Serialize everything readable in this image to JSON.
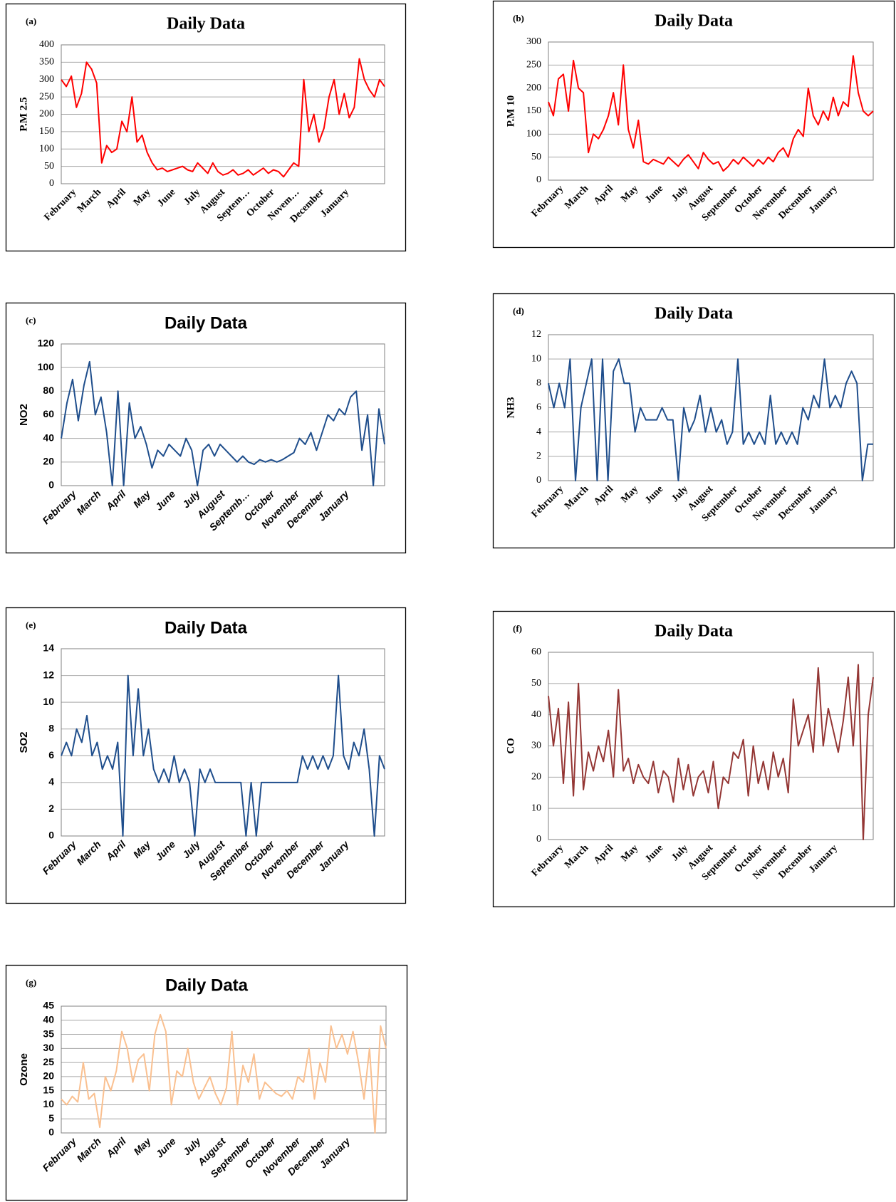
{
  "chart_data": [
    {
      "type": "line",
      "panel": "(a)",
      "title": "Daily Data",
      "y_label": "P.M 2.5",
      "color": "#ff0000",
      "grid": true,
      "ylim": [
        0,
        400
      ],
      "yticks": [
        0,
        50,
        100,
        150,
        200,
        250,
        300,
        350,
        400
      ],
      "months": [
        "February",
        "March",
        "April",
        "May",
        "June",
        "July",
        "August",
        "Septem…",
        "October",
        "Novem…",
        "December",
        "January"
      ],
      "values": [
        300,
        280,
        310,
        220,
        260,
        350,
        330,
        290,
        60,
        110,
        90,
        100,
        180,
        150,
        250,
        120,
        140,
        90,
        60,
        40,
        45,
        35,
        40,
        45,
        50,
        40,
        35,
        60,
        45,
        30,
        60,
        35,
        25,
        30,
        40,
        25,
        30,
        40,
        25,
        35,
        45,
        30,
        40,
        35,
        20,
        40,
        60,
        50,
        300,
        150,
        200,
        120,
        160,
        250,
        300,
        200,
        260,
        190,
        220,
        360,
        300,
        270,
        250,
        300,
        280
      ]
    },
    {
      "type": "line",
      "panel": "(b)",
      "title": "Daily Data",
      "y_label": "P.M 10",
      "color": "#ff0000",
      "grid": true,
      "ylim": [
        0,
        300
      ],
      "yticks": [
        0,
        50,
        100,
        150,
        200,
        250,
        300
      ],
      "months": [
        "February",
        "March",
        "April",
        "May",
        "June",
        "July",
        "August",
        "September",
        "October",
        "November",
        "December",
        "January"
      ],
      "values": [
        170,
        140,
        220,
        230,
        150,
        260,
        200,
        190,
        60,
        100,
        90,
        110,
        140,
        190,
        120,
        250,
        110,
        70,
        130,
        40,
        35,
        45,
        40,
        35,
        50,
        40,
        30,
        45,
        55,
        40,
        25,
        60,
        45,
        35,
        40,
        20,
        30,
        45,
        35,
        50,
        40,
        30,
        45,
        35,
        50,
        40,
        60,
        70,
        50,
        90,
        110,
        95,
        200,
        140,
        120,
        150,
        130,
        180,
        140,
        170,
        160,
        270,
        190,
        150,
        140,
        150
      ]
    },
    {
      "type": "line",
      "panel": "(c)",
      "title": "Daily Data",
      "y_label": "NO2",
      "color": "#1f4e8c",
      "grid": true,
      "ylim": [
        0,
        120
      ],
      "yticks": [
        0,
        20,
        40,
        60,
        80,
        100,
        120
      ],
      "months": [
        "February",
        "March",
        "April",
        "May",
        "June",
        "July",
        "August",
        "Septemb…",
        "October",
        "November",
        "December",
        "January"
      ],
      "values": [
        40,
        70,
        90,
        55,
        85,
        105,
        60,
        75,
        45,
        0,
        80,
        0,
        70,
        40,
        50,
        35,
        15,
        30,
        25,
        35,
        30,
        25,
        40,
        30,
        0,
        30,
        35,
        25,
        35,
        30,
        25,
        20,
        25,
        20,
        18,
        22,
        20,
        22,
        20,
        22,
        25,
        28,
        40,
        35,
        45,
        30,
        45,
        60,
        55,
        65,
        60,
        75,
        80,
        30,
        60,
        0,
        65,
        35
      ]
    },
    {
      "type": "line",
      "panel": "(d)",
      "title": "Daily Data",
      "y_label": "NH3",
      "color": "#1f4e8c",
      "grid": true,
      "ylim": [
        0,
        12
      ],
      "yticks": [
        0,
        2,
        4,
        6,
        8,
        10,
        12
      ],
      "months": [
        "February",
        "March",
        "April",
        "May",
        "June",
        "July",
        "August",
        "September",
        "October",
        "November",
        "December",
        "January"
      ],
      "values": [
        8,
        6,
        8,
        6,
        10,
        0,
        6,
        8,
        10,
        0,
        10,
        0,
        9,
        10,
        8,
        8,
        4,
        6,
        5,
        5,
        5,
        6,
        5,
        5,
        0,
        6,
        4,
        5,
        7,
        4,
        6,
        4,
        5,
        3,
        4,
        10,
        3,
        4,
        3,
        4,
        3,
        7,
        3,
        4,
        3,
        4,
        3,
        6,
        5,
        7,
        6,
        10,
        6,
        7,
        6,
        8,
        9,
        8,
        0,
        3,
        3
      ]
    },
    {
      "type": "line",
      "panel": "(e)",
      "title": "Daily Data",
      "y_label": "SO2",
      "color": "#1f4e8c",
      "grid": true,
      "ylim": [
        0,
        14
      ],
      "yticks": [
        0,
        2,
        4,
        6,
        8,
        10,
        12,
        14
      ],
      "months": [
        "February",
        "March",
        "April",
        "May",
        "June",
        "July",
        "August",
        "September",
        "October",
        "November",
        "December",
        "January"
      ],
      "values": [
        6,
        7,
        6,
        8,
        7,
        9,
        6,
        7,
        5,
        6,
        5,
        7,
        0,
        12,
        6,
        11,
        6,
        8,
        5,
        4,
        5,
        4,
        6,
        4,
        5,
        4,
        0,
        5,
        4,
        5,
        4,
        4,
        4,
        4,
        4,
        4,
        0,
        4,
        0,
        4,
        4,
        4,
        4,
        4,
        4,
        4,
        4,
        6,
        5,
        6,
        5,
        6,
        5,
        6,
        12,
        6,
        5,
        7,
        6,
        8,
        5,
        0,
        6,
        5
      ]
    },
    {
      "type": "line",
      "panel": "(f)",
      "title": "Daily Data",
      "y_label": "CO",
      "color": "#943634",
      "grid": true,
      "ylim": [
        0,
        60
      ],
      "yticks": [
        0,
        10,
        20,
        30,
        40,
        50,
        60
      ],
      "months": [
        "February",
        "March",
        "April",
        "May",
        "June",
        "July",
        "August",
        "September",
        "October",
        "November",
        "December",
        "January"
      ],
      "values": [
        46,
        30,
        42,
        18,
        44,
        14,
        50,
        16,
        28,
        22,
        30,
        25,
        35,
        20,
        48,
        22,
        26,
        18,
        24,
        20,
        18,
        25,
        15,
        22,
        20,
        12,
        26,
        16,
        24,
        14,
        20,
        22,
        15,
        25,
        10,
        20,
        18,
        28,
        26,
        32,
        14,
        30,
        18,
        25,
        16,
        28,
        20,
        26,
        15,
        45,
        30,
        35,
        40,
        28,
        55,
        30,
        42,
        35,
        28,
        38,
        52,
        30,
        56,
        0,
        40,
        52
      ]
    },
    {
      "type": "line",
      "panel": "(g)",
      "title": "Daily Data",
      "y_label": "Ozone",
      "color": "#fac090",
      "grid": true,
      "ylim": [
        0,
        45
      ],
      "yticks": [
        0,
        5,
        10,
        15,
        20,
        25,
        30,
        35,
        40,
        45
      ],
      "months": [
        "February",
        "March",
        "April",
        "May",
        "June",
        "July",
        "August",
        "September",
        "October",
        "November",
        "December",
        "January"
      ],
      "values": [
        12,
        10,
        13,
        11,
        25,
        12,
        14,
        2,
        20,
        15,
        22,
        36,
        30,
        18,
        26,
        28,
        15,
        35,
        42,
        36,
        10,
        22,
        20,
        30,
        18,
        12,
        16,
        20,
        14,
        10,
        16,
        36,
        10,
        24,
        18,
        28,
        12,
        18,
        16,
        14,
        13,
        15,
        12,
        20,
        18,
        30,
        12,
        25,
        18,
        38,
        30,
        35,
        28,
        36,
        25,
        12,
        30,
        0,
        38,
        30
      ]
    }
  ]
}
